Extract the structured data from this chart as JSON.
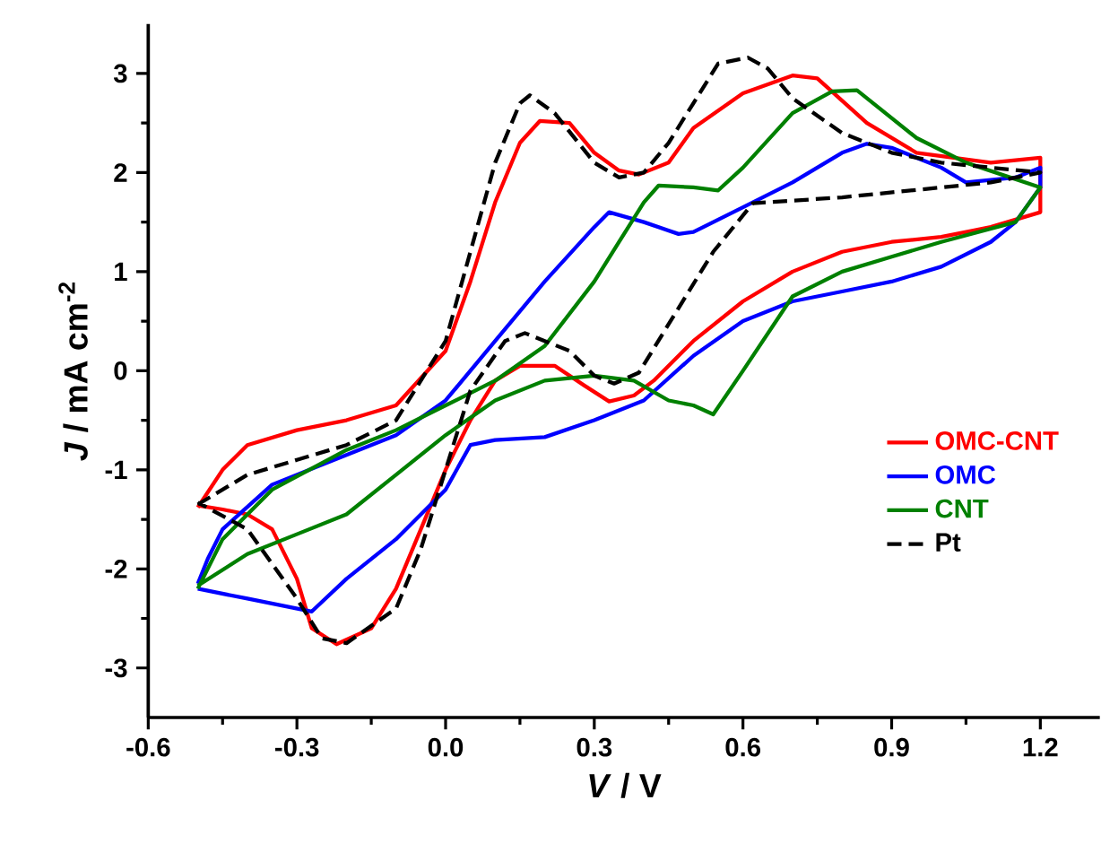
{
  "chart_data": {
    "type": "line",
    "xlabel": "*V* / V",
    "ylabel": "*J* / mA cm$^{-2}$",
    "xlim": [
      -0.6,
      1.32
    ],
    "ylim": [
      -3.5,
      3.5
    ],
    "xticks": [
      -0.6,
      -0.3,
      {
        "value": 0,
        "label": "0.0"
      },
      0.3,
      0.6,
      0.9,
      1.2
    ],
    "yticks": [
      -3,
      -2,
      -1,
      0,
      1,
      2,
      3
    ],
    "grid": false,
    "legend": "bottom right",
    "marker": "none",
    "series": [
      {
        "name": "OMC-CNT",
        "color": "#ff0000",
        "line_style": "solid",
        "x": [
          -0.5,
          -0.45,
          -0.4,
          -0.3,
          -0.2,
          -0.1,
          0.0,
          0.05,
          0.1,
          0.15,
          0.19,
          0.25,
          0.3,
          0.35,
          0.39,
          0.45,
          0.5,
          0.6,
          0.7,
          0.75,
          0.85,
          0.95,
          1.1,
          1.2,
          1.2,
          1.1,
          1.0,
          0.9,
          0.8,
          0.7,
          0.6,
          0.5,
          0.42,
          0.38,
          0.33,
          0.28,
          0.22,
          0.15,
          0.1,
          0.05,
          0.0,
          -0.05,
          -0.1,
          -0.15,
          -0.22,
          -0.27,
          -0.3,
          -0.35,
          -0.4,
          -0.45,
          -0.5
        ],
        "values": [
          -1.38,
          -1.0,
          -0.75,
          -0.6,
          -0.5,
          -0.35,
          0.2,
          0.9,
          1.7,
          2.3,
          2.52,
          2.5,
          2.2,
          2.02,
          1.98,
          2.1,
          2.45,
          2.8,
          2.98,
          2.95,
          2.5,
          2.2,
          2.1,
          2.15,
          1.6,
          1.45,
          1.35,
          1.3,
          1.2,
          1.0,
          0.7,
          0.3,
          -0.1,
          -0.25,
          -0.31,
          -0.15,
          0.05,
          0.05,
          -0.1,
          -0.5,
          -1.0,
          -1.6,
          -2.2,
          -2.6,
          -2.76,
          -2.6,
          -2.1,
          -1.6,
          -1.45,
          -1.4,
          -1.36
        ]
      },
      {
        "name": "OMC",
        "color": "#0000ff",
        "line_style": "solid",
        "x": [
          -0.5,
          -0.48,
          -0.45,
          -0.35,
          -0.2,
          -0.1,
          0.0,
          0.1,
          0.2,
          0.3,
          0.33,
          0.4,
          0.47,
          0.5,
          0.6,
          0.7,
          0.8,
          0.85,
          0.9,
          1.0,
          1.05,
          1.15,
          1.2,
          1.2,
          1.15,
          1.1,
          1.0,
          0.9,
          0.8,
          0.7,
          0.6,
          0.5,
          0.4,
          0.3,
          0.2,
          0.1,
          0.05,
          0.0,
          -0.1,
          -0.2,
          -0.27,
          -0.4,
          -0.5
        ],
        "values": [
          -2.15,
          -1.9,
          -1.6,
          -1.15,
          -0.85,
          -0.65,
          -0.3,
          0.3,
          0.9,
          1.45,
          1.6,
          1.5,
          1.38,
          1.4,
          1.65,
          1.9,
          2.2,
          2.29,
          2.25,
          2.05,
          1.9,
          1.95,
          2.05,
          1.85,
          1.5,
          1.3,
          1.05,
          0.9,
          0.8,
          0.7,
          0.5,
          0.15,
          -0.3,
          -0.5,
          -0.67,
          -0.7,
          -0.75,
          -1.2,
          -1.7,
          -2.1,
          -2.43,
          -2.3,
          -2.2
        ]
      },
      {
        "name": "CNT",
        "color": "#008000",
        "line_style": "solid",
        "x": [
          -0.5,
          -0.45,
          -0.35,
          -0.2,
          -0.1,
          0.0,
          0.1,
          0.2,
          0.3,
          0.35,
          0.4,
          0.43,
          0.5,
          0.55,
          0.6,
          0.7,
          0.78,
          0.83,
          0.95,
          1.05,
          1.2,
          1.15,
          1.0,
          0.9,
          0.8,
          0.7,
          0.6,
          0.54,
          0.5,
          0.45,
          0.38,
          0.3,
          0.2,
          0.1,
          0.0,
          -0.1,
          -0.2,
          -0.3,
          -0.4,
          -0.5
        ],
        "values": [
          -2.2,
          -1.7,
          -1.2,
          -0.8,
          -0.6,
          -0.35,
          -0.1,
          0.25,
          0.9,
          1.3,
          1.7,
          1.87,
          1.85,
          1.82,
          2.05,
          2.6,
          2.82,
          2.83,
          2.35,
          2.1,
          1.85,
          1.5,
          1.3,
          1.15,
          1.0,
          0.75,
          0.0,
          -0.44,
          -0.35,
          -0.3,
          -0.1,
          -0.05,
          -0.1,
          -0.3,
          -0.65,
          -1.05,
          -1.45,
          -1.65,
          -1.85,
          -2.17
        ]
      },
      {
        "name": "Pt",
        "color": "#000000",
        "line_style": "dashed",
        "x": [
          -0.5,
          -0.4,
          -0.3,
          -0.2,
          -0.1,
          0.0,
          0.05,
          0.1,
          0.15,
          0.17,
          0.22,
          0.3,
          0.35,
          0.4,
          0.45,
          0.5,
          0.55,
          0.61,
          0.65,
          0.7,
          0.8,
          0.9,
          1.0,
          1.2,
          1.1,
          1.0,
          0.8,
          0.62,
          0.54,
          0.45,
          0.39,
          0.34,
          0.3,
          0.25,
          0.16,
          0.12,
          0.05,
          0.0,
          -0.05,
          -0.1,
          -0.2,
          -0.25,
          -0.3,
          -0.4,
          -0.5
        ],
        "values": [
          -1.35,
          -1.05,
          -0.9,
          -0.75,
          -0.5,
          0.3,
          1.2,
          2.1,
          2.7,
          2.78,
          2.6,
          2.1,
          1.95,
          2.0,
          2.3,
          2.7,
          3.1,
          3.16,
          3.05,
          2.75,
          2.4,
          2.2,
          2.1,
          2.0,
          1.9,
          1.85,
          1.75,
          1.69,
          1.2,
          0.47,
          -0.02,
          -0.13,
          -0.05,
          0.2,
          0.38,
          0.3,
          -0.2,
          -1.0,
          -1.8,
          -2.4,
          -2.75,
          -2.7,
          -2.3,
          -1.6,
          -1.33
        ]
      }
    ]
  }
}
